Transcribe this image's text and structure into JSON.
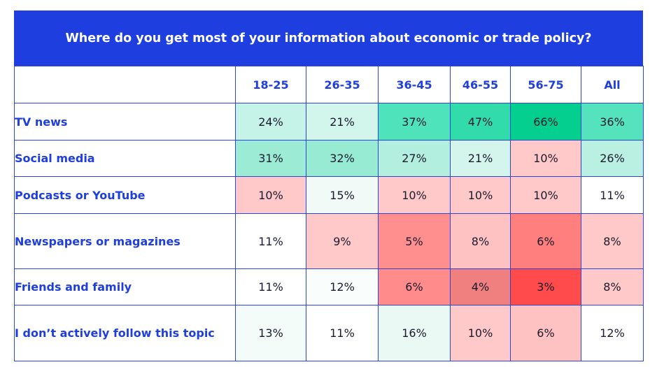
{
  "chart_data": {
    "type": "table",
    "title": "Where do you get most of your information about economic or trade policy?",
    "columns": [
      "18-25",
      "26-35",
      "36-45",
      "46-55",
      "56-75",
      "All"
    ],
    "rows": [
      {
        "label": "TV news",
        "values": [
          "24%",
          "21%",
          "37%",
          "47%",
          "66%",
          "36%"
        ],
        "colors": [
          "#c6f3e7",
          "#d2f5ec",
          "#4fe3bb",
          "#32dcaa",
          "#04cf8e",
          "#55e3bd"
        ]
      },
      {
        "label": "Social media",
        "values": [
          "31%",
          "32%",
          "27%",
          "21%",
          "10%",
          "26%"
        ],
        "colors": [
          "#9cebd5",
          "#97ebd3",
          "#b3efde",
          "#d3f5ec",
          "#ffc9c9",
          "#b9f0e1"
        ]
      },
      {
        "label": "Podcasts or YouTube",
        "values": [
          "10%",
          "15%",
          "10%",
          "10%",
          "10%",
          "11%"
        ],
        "colors": [
          "#ffc9c9",
          "#f0fbf8",
          "#ffc9c9",
          "#ffc9c9",
          "#ffc9c9",
          "#ffffff"
        ]
      },
      {
        "label": "Newspapers or magazines",
        "values": [
          "11%",
          "9%",
          "5%",
          "8%",
          "6%",
          "8%"
        ],
        "colors": [
          "#ffffff",
          "#ffc9c9",
          "#ff8f8f",
          "#ffc2c2",
          "#ff7e7e",
          "#ffc9c9"
        ]
      },
      {
        "label": "Friends and family",
        "values": [
          "11%",
          "12%",
          "6%",
          "4%",
          "3%",
          "8%"
        ],
        "colors": [
          "#ffffff",
          "#f9fdfc",
          "#ff8b8b",
          "#f07f7f",
          "#ff4b4b",
          "#ffc9c9"
        ]
      },
      {
        "label": "I don’t actively follow this topic",
        "values": [
          "13%",
          "11%",
          "16%",
          "10%",
          "6%",
          "12%"
        ],
        "colors": [
          "#f4fcfa",
          "#ffffff",
          "#eaf9f4",
          "#ffc9c9",
          "#ffc2c2",
          "#ffffff"
        ]
      }
    ]
  },
  "theme": {
    "accent": "#1f3ee0",
    "border": "#2c45d8"
  }
}
